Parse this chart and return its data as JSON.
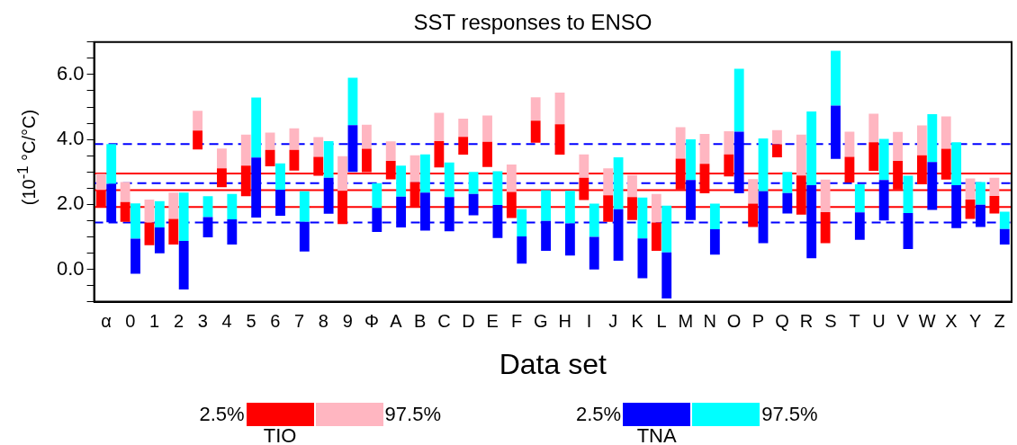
{
  "chart_data": {
    "type": "bar",
    "title": "SST responses to ENSO",
    "xlabel": "Data set",
    "ylabel": "(10$^{-1}$ °C/°C)",
    "categories": [
      "α",
      "0",
      "1",
      "2",
      "3",
      "4",
      "5",
      "6",
      "7",
      "8",
      "9",
      "Φ",
      "A",
      "B",
      "C",
      "D",
      "E",
      "F",
      "G",
      "H",
      "I",
      "J",
      "K",
      "L",
      "M",
      "N",
      "O",
      "P",
      "Q",
      "R",
      "S",
      "T",
      "U",
      "V",
      "W",
      "X",
      "Y",
      "Z"
    ],
    "series": [
      {
        "name": "TIO",
        "color": "#ff0000",
        "base": [
          1.92,
          1.46,
          0.74,
          0.76,
          3.69,
          2.53,
          2.25,
          3.17,
          3.04,
          2.88,
          1.39,
          2.99,
          2.77,
          1.92,
          3.14,
          3.53,
          3.15,
          1.58,
          3.9,
          3.53,
          2.13,
          1.46,
          1.52,
          0.57,
          2.46,
          2.34,
          2.86,
          1.3,
          3.45,
          1.68,
          0.8,
          2.67,
          3.03,
          2.46,
          2.62,
          2.76,
          1.55,
          1.72
        ],
        "values": [
          0.52,
          0.61,
          0.7,
          0.79,
          0.58,
          0.58,
          0.94,
          0.51,
          0.64,
          0.58,
          1.03,
          0.72,
          0.57,
          0.77,
          0.81,
          0.55,
          0.78,
          0.8,
          0.68,
          0.94,
          0.69,
          0.82,
          0.7,
          0.87,
          0.95,
          0.91,
          0.68,
          0.72,
          0.4,
          1.21,
          0.96,
          0.79,
          0.88,
          0.88,
          0.89,
          0.95,
          0.6,
          0.54
        ]
      },
      {
        "color": "#ffb6c1",
        "base": [
          2.44,
          2.07,
          1.44,
          1.55,
          4.27,
          3.11,
          3.19,
          3.68,
          3.68,
          3.46,
          2.42,
          3.71,
          3.34,
          2.69,
          3.95,
          4.08,
          3.93,
          2.38,
          4.58,
          4.47,
          2.82,
          2.28,
          2.22,
          1.44,
          3.41,
          3.25,
          3.54,
          2.02,
          3.85,
          2.89,
          1.76,
          3.46,
          3.91,
          3.34,
          3.51,
          3.71,
          2.15,
          2.26
        ],
        "values": [
          0.5,
          0.62,
          0.71,
          0.81,
          0.61,
          0.61,
          0.96,
          0.53,
          0.66,
          0.61,
          1.06,
          0.74,
          0.6,
          0.82,
          0.87,
          0.56,
          0.81,
          0.85,
          0.72,
          0.97,
          0.72,
          0.83,
          0.68,
          0.88,
          0.97,
          0.92,
          0.71,
          0.76,
          0.44,
          1.26,
          1.0,
          0.78,
          0.88,
          0.89,
          0.92,
          1.0,
          0.65,
          0.56
        ]
      },
      {
        "name": "TNA",
        "color": "#0000ff",
        "base": [
          1.45,
          -0.14,
          0.49,
          -0.62,
          0.98,
          0.76,
          1.59,
          1.65,
          0.55,
          1.71,
          3.0,
          1.15,
          1.29,
          1.19,
          1.17,
          1.66,
          0.96,
          0.17,
          0.57,
          0.42,
          -0.01,
          0.26,
          -0.28,
          -0.9,
          1.52,
          0.45,
          2.34,
          0.8,
          1.72,
          0.34,
          3.4,
          0.91,
          1.5,
          0.62,
          1.83,
          1.27,
          1.3,
          0.76
        ],
        "values": [
          1.18,
          1.08,
          0.8,
          1.49,
          0.63,
          0.78,
          1.85,
          0.8,
          0.91,
          1.11,
          1.44,
          0.74,
          0.95,
          1.17,
          1.05,
          0.66,
          1.02,
          0.84,
          0.92,
          0.99,
          1.01,
          1.59,
          1.23,
          1.42,
          1.23,
          0.78,
          1.9,
          1.6,
          0.63,
          2.25,
          1.64,
          0.84,
          1.25,
          1.11,
          1.47,
          1.32,
          0.69,
          0.48
        ]
      },
      {
        "color": "#00ffff",
        "base": [
          2.63,
          0.94,
          1.29,
          0.87,
          1.61,
          1.54,
          3.44,
          2.45,
          1.46,
          2.82,
          4.44,
          1.89,
          2.24,
          2.36,
          2.22,
          2.32,
          1.98,
          1.01,
          1.49,
          1.41,
          1.0,
          1.85,
          0.95,
          0.52,
          2.75,
          1.23,
          4.24,
          2.4,
          2.35,
          2.59,
          5.04,
          1.75,
          2.75,
          1.73,
          3.3,
          2.59,
          1.99,
          1.24
        ],
        "values": [
          1.23,
          1.09,
          0.81,
          1.49,
          0.64,
          0.78,
          1.85,
          0.81,
          0.94,
          1.13,
          1.46,
          0.76,
          0.95,
          1.18,
          1.07,
          0.68,
          1.04,
          0.84,
          0.95,
          1.01,
          1.02,
          1.6,
          1.26,
          1.44,
          1.25,
          0.79,
          1.94,
          1.63,
          0.65,
          2.27,
          1.69,
          0.87,
          1.27,
          1.15,
          1.48,
          1.32,
          0.7,
          0.53
        ]
      }
    ],
    "ylim": [
      -1,
      7
    ],
    "yticks": [
      {
        "value": -1,
        "label": null
      },
      {
        "value": -0.5,
        "label": null
      },
      {
        "value": 0,
        "label": "0.0"
      },
      {
        "value": 0.5,
        "label": null
      },
      {
        "value": 1,
        "label": null
      },
      {
        "value": 1.5,
        "label": null
      },
      {
        "value": 2,
        "label": "2.0"
      },
      {
        "value": 2.5,
        "label": null
      },
      {
        "value": 3,
        "label": null
      },
      {
        "value": 3.5,
        "label": null
      },
      {
        "value": 4,
        "label": "4.0"
      },
      {
        "value": 4.5,
        "label": null
      },
      {
        "value": 5,
        "label": null
      },
      {
        "value": 5.5,
        "label": null
      },
      {
        "value": 6,
        "label": "6.0"
      },
      {
        "value": 6.5,
        "label": null
      },
      {
        "value": 7,
        "label": null
      }
    ],
    "ref_lines": [
      {
        "axis": "y",
        "value": 2.95,
        "color": "#ff0000",
        "line_style": "solid"
      },
      {
        "axis": "y",
        "value": 2.44,
        "color": "#ff0000",
        "line_style": "solid"
      },
      {
        "axis": "y",
        "value": 1.92,
        "color": "#ff0000",
        "line_style": "solid"
      },
      {
        "axis": "y",
        "value": 3.86,
        "color": "#0000ff",
        "line_style": "dashed"
      },
      {
        "axis": "y",
        "value": 2.65,
        "color": "#0000ff",
        "line_style": "dashed"
      },
      {
        "axis": "y",
        "value": 1.44,
        "color": "#0000ff",
        "line_style": "dashed"
      }
    ],
    "annotations": [
      "2.5%",
      "97.5%",
      "2.5%",
      "97.5%"
    ],
    "grid": false,
    "legend": "bottom"
  }
}
